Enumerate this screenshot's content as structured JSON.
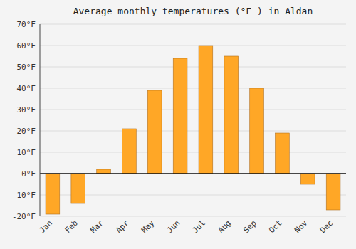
{
  "chart_data": {
    "type": "bar",
    "title": "Average monthly temperatures (°F ) in Aldan",
    "categories": [
      "Jan",
      "Feb",
      "Mar",
      "Apr",
      "May",
      "Jun",
      "Jul",
      "Aug",
      "Sep",
      "Oct",
      "Nov",
      "Dec"
    ],
    "values": [
      -19,
      -14,
      2,
      21,
      39,
      54,
      60,
      55,
      40,
      19,
      -5,
      -17
    ],
    "color": "#FFA726",
    "ylim": [
      -20,
      70
    ],
    "yticks": [
      {
        "value": -20,
        "label": "-20°F"
      },
      {
        "value": -10,
        "label": "-10°F"
      },
      {
        "value": 0,
        "label": "0°F"
      },
      {
        "value": 10,
        "label": "10°F"
      },
      {
        "value": 20,
        "label": "20°F"
      },
      {
        "value": 30,
        "label": "30°F"
      },
      {
        "value": 40,
        "label": "40°F"
      },
      {
        "value": 50,
        "label": "50°F"
      },
      {
        "value": 60,
        "label": "60°F"
      },
      {
        "value": 70,
        "label": "70°F"
      }
    ],
    "grid": true
  }
}
